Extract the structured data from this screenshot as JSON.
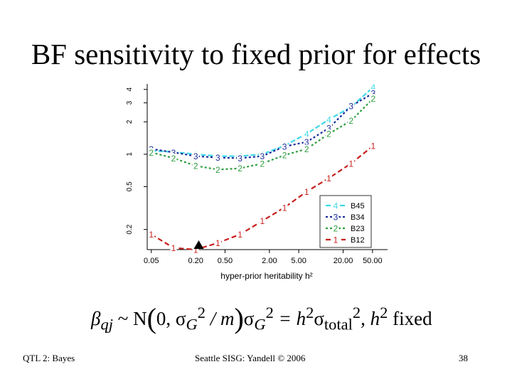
{
  "slide": {
    "title": "BF sensitivity to fixed prior for effects",
    "footer_left": "QTL 2: Bayes",
    "footer_center": "Seattle SISG: Yandell © 2006",
    "footer_right": "38",
    "formula": {
      "beta": "β",
      "beta_sub": "qj",
      "tilde": "~ N",
      "zero": "0, σ",
      "sigmaG_sub": "G",
      "sigmaG_sup": "2",
      "over_m": " / m",
      "sigma2": "σ",
      "eq": " = h",
      "h_sup": "2",
      "sigma3": "σ",
      "total_sub": "total",
      "total_sup": "2",
      "tail": ", h",
      "h2_sup": "2",
      "fixed": " fixed"
    }
  },
  "chart_data": {
    "type": "line",
    "title": "",
    "xlabel": "hyper-prior heritability h²",
    "ylabel": "",
    "x": [
      0.05,
      0.1,
      0.2,
      0.4,
      0.8,
      1.6,
      3.2,
      6.4,
      12.8,
      25.6,
      51.2
    ],
    "xscale": "log",
    "yscale": "log",
    "xlim": [
      0.044,
      80
    ],
    "ylim": [
      0.13,
      4.5
    ],
    "x_ticks": [
      0.05,
      0.2,
      0.5,
      2,
      5,
      20,
      50
    ],
    "x_tick_labels": [
      "0.05",
      "0.20",
      "0.50",
      "2.00",
      "5.00",
      "20.00",
      "50.00"
    ],
    "y_ticks": [
      0.2,
      0.5,
      1,
      2,
      3,
      4
    ],
    "y_tick_labels": [
      "0.2",
      "0.5",
      "1",
      "2",
      "3",
      "4"
    ],
    "marker_x": 0.22,
    "legend_position": "bottom-right",
    "series": [
      {
        "name": "B45",
        "symbol": "4",
        "color": "#3fd8e8",
        "dash": "7,3",
        "values": [
          1.08,
          1.05,
          1.0,
          0.96,
          0.96,
          1.0,
          1.2,
          1.55,
          2.1,
          2.75,
          4.2
        ]
      },
      {
        "name": "B34",
        "symbol": "3",
        "color": "#1a2a9a",
        "dash": "3,3",
        "values": [
          1.12,
          1.04,
          0.96,
          0.93,
          0.92,
          0.96,
          1.18,
          1.3,
          1.75,
          2.8,
          3.7
        ]
      },
      {
        "name": "B23",
        "symbol": "2",
        "color": "#2e9e3e",
        "dash": "3,3",
        "values": [
          1.04,
          0.92,
          0.78,
          0.72,
          0.74,
          0.82,
          0.98,
          1.12,
          1.55,
          2.05,
          3.3
        ]
      },
      {
        "name": "B12",
        "symbol": "1",
        "color": "#c8201e",
        "dash": "7,4",
        "values": [
          0.18,
          0.135,
          0.13,
          0.15,
          0.18,
          0.24,
          0.32,
          0.45,
          0.6,
          0.82,
          1.2
        ]
      }
    ]
  }
}
